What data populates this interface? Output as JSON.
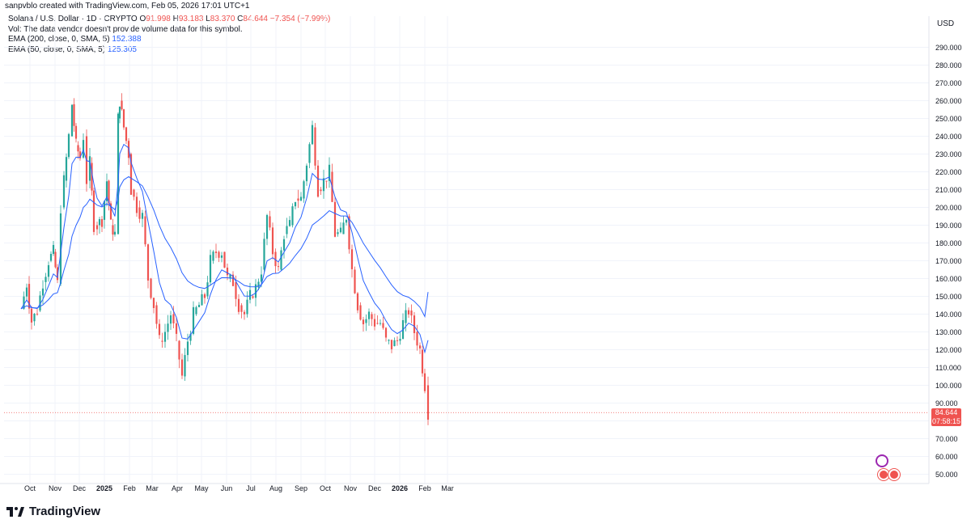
{
  "header": {
    "created_by": "sanpvblo created with TradingView.com, Feb 05, 2026 17:01 UTC+1"
  },
  "legend": {
    "symbol": "Solana / U.S. Dollar · 1D · CRYPTO",
    "open_label": "O",
    "open": "91.998",
    "high_label": "H",
    "high": "93.183",
    "low_label": "L",
    "low": "83.370",
    "close_label": "C",
    "close": "84.644",
    "change": "−7.354 (−7.99%)",
    "vol_note": "Vol: The data vendor doesn't provide volume data for this symbol.",
    "ema200_label": "EMA (200, close, 0, SMA, 5)",
    "ema200_value": "152.388",
    "ema50_label": "EMA (50, close, 0, SMA, 5)",
    "ema50_value": "125.305"
  },
  "price_axis": {
    "currency": "USD",
    "last_price": "84.644",
    "countdown": "07:58:15"
  },
  "branding": {
    "logo_text": "TradingView"
  },
  "colors": {
    "up": "#26a69a",
    "down": "#ef5350",
    "ema": "#2962ff",
    "grid": "#f0f3fa",
    "text": "#131722"
  },
  "chart_data": {
    "type": "candlestick",
    "title": "Solana / U.S. Dollar · 1D · CRYPTO",
    "ylim": [
      46,
      300
    ],
    "y_ticks": [
      50,
      60,
      70,
      80,
      90,
      100,
      110,
      120,
      130,
      140,
      150,
      160,
      170,
      180,
      190,
      200,
      210,
      220,
      230,
      240,
      250,
      260,
      270,
      280,
      290
    ],
    "y_tick_labels": [
      "50.000",
      "60.000",
      "70.000",
      "80.000",
      "90.000",
      "100.000",
      "110.000",
      "120.000",
      "130.000",
      "140.000",
      "150.000",
      "160.000",
      "170.000",
      "180.000",
      "190.000",
      "200.000",
      "210.000",
      "220.000",
      "230.000",
      "240.000",
      "250.000",
      "260.000",
      "270.000",
      "280.000",
      "290.000"
    ],
    "x_ticks": [
      "Oct",
      "Nov",
      "Dec",
      "2025",
      "Feb",
      "Mar",
      "Apr",
      "May",
      "Jun",
      "Jul",
      "Aug",
      "Sep",
      "Oct",
      "Nov",
      "Dec",
      "2026",
      "Feb",
      "Mar"
    ],
    "close_series": [
      {
        "date": "2024-09-20",
        "close": 143
      },
      {
        "date": "2024-09-27",
        "close": 157
      },
      {
        "date": "2024-10-03",
        "close": 136
      },
      {
        "date": "2024-10-10",
        "close": 142
      },
      {
        "date": "2024-10-17",
        "close": 158
      },
      {
        "date": "2024-10-24",
        "close": 170
      },
      {
        "date": "2024-10-30",
        "close": 175
      },
      {
        "date": "2024-11-04",
        "close": 157
      },
      {
        "date": "2024-11-08",
        "close": 200
      },
      {
        "date": "2024-11-12",
        "close": 215
      },
      {
        "date": "2024-11-18",
        "close": 240
      },
      {
        "date": "2024-11-22",
        "close": 258
      },
      {
        "date": "2024-11-27",
        "close": 235
      },
      {
        "date": "2024-12-02",
        "close": 228
      },
      {
        "date": "2024-12-06",
        "close": 240
      },
      {
        "date": "2024-12-10",
        "close": 215
      },
      {
        "date": "2024-12-14",
        "close": 225
      },
      {
        "date": "2024-12-19",
        "close": 190
      },
      {
        "date": "2024-12-23",
        "close": 190
      },
      {
        "date": "2024-12-29",
        "close": 193
      },
      {
        "date": "2025-01-04",
        "close": 215
      },
      {
        "date": "2025-01-09",
        "close": 190
      },
      {
        "date": "2025-01-14",
        "close": 185
      },
      {
        "date": "2025-01-18",
        "close": 250
      },
      {
        "date": "2025-01-20",
        "close": 260
      },
      {
        "date": "2025-01-25",
        "close": 245
      },
      {
        "date": "2025-01-31",
        "close": 230
      },
      {
        "date": "2025-02-03",
        "close": 210
      },
      {
        "date": "2025-02-10",
        "close": 200
      },
      {
        "date": "2025-02-17",
        "close": 195
      },
      {
        "date": "2025-02-24",
        "close": 160
      },
      {
        "date": "2025-03-03",
        "close": 145
      },
      {
        "date": "2025-03-10",
        "close": 125
      },
      {
        "date": "2025-03-17",
        "close": 130
      },
      {
        "date": "2025-03-24",
        "close": 140
      },
      {
        "date": "2025-03-31",
        "close": 125
      },
      {
        "date": "2025-04-07",
        "close": 105
      },
      {
        "date": "2025-04-14",
        "close": 125
      },
      {
        "date": "2025-04-21",
        "close": 140
      },
      {
        "date": "2025-04-28",
        "close": 145
      },
      {
        "date": "2025-05-05",
        "close": 150
      },
      {
        "date": "2025-05-12",
        "close": 170
      },
      {
        "date": "2025-05-19",
        "close": 175
      },
      {
        "date": "2025-05-26",
        "close": 175
      },
      {
        "date": "2025-06-02",
        "close": 160
      },
      {
        "date": "2025-06-09",
        "close": 158
      },
      {
        "date": "2025-06-16",
        "close": 145
      },
      {
        "date": "2025-06-23",
        "close": 140
      },
      {
        "date": "2025-06-30",
        "close": 150
      },
      {
        "date": "2025-07-07",
        "close": 155
      },
      {
        "date": "2025-07-14",
        "close": 165
      },
      {
        "date": "2025-07-21",
        "close": 195
      },
      {
        "date": "2025-07-28",
        "close": 175
      },
      {
        "date": "2025-08-04",
        "close": 165
      },
      {
        "date": "2025-08-11",
        "close": 185
      },
      {
        "date": "2025-08-18",
        "close": 190
      },
      {
        "date": "2025-08-25",
        "close": 205
      },
      {
        "date": "2025-09-01",
        "close": 205
      },
      {
        "date": "2025-09-08",
        "close": 225
      },
      {
        "date": "2025-09-15",
        "close": 245
      },
      {
        "date": "2025-09-22",
        "close": 210
      },
      {
        "date": "2025-09-29",
        "close": 215
      },
      {
        "date": "2025-10-06",
        "close": 220
      },
      {
        "date": "2025-10-13",
        "close": 185
      },
      {
        "date": "2025-10-20",
        "close": 185
      },
      {
        "date": "2025-10-27",
        "close": 195
      },
      {
        "date": "2025-11-03",
        "close": 165
      },
      {
        "date": "2025-11-10",
        "close": 145
      },
      {
        "date": "2025-11-17",
        "close": 135
      },
      {
        "date": "2025-11-24",
        "close": 140
      },
      {
        "date": "2025-12-01",
        "close": 135
      },
      {
        "date": "2025-12-08",
        "close": 135
      },
      {
        "date": "2025-12-15",
        "close": 125
      },
      {
        "date": "2025-12-22",
        "close": 122
      },
      {
        "date": "2025-12-29",
        "close": 125
      },
      {
        "date": "2026-01-05",
        "close": 135
      },
      {
        "date": "2026-01-12",
        "close": 142
      },
      {
        "date": "2026-01-19",
        "close": 130
      },
      {
        "date": "2026-01-26",
        "close": 120
      },
      {
        "date": "2026-02-01",
        "close": 100
      },
      {
        "date": "2026-02-05",
        "close": 84.644
      }
    ],
    "series": [
      {
        "name": "EMA (200, close, 0, SMA, 5)",
        "value": 152.388
      },
      {
        "name": "EMA (50, close, 0, SMA, 5)",
        "value": 125.305
      }
    ]
  }
}
